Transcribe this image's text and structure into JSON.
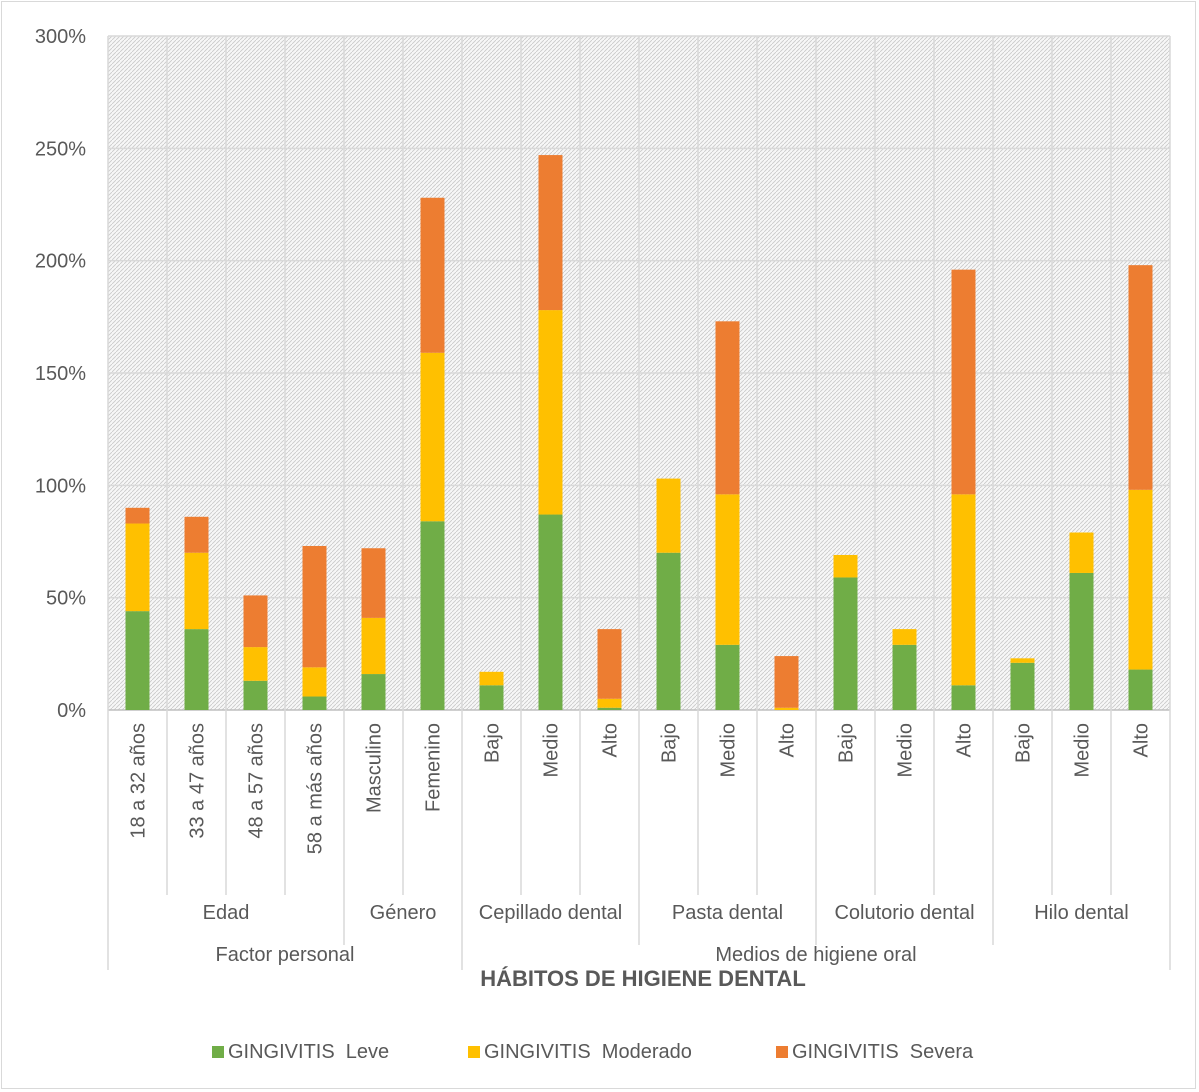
{
  "chart_data": {
    "type": "bar",
    "stacked": true,
    "xlabel": "HÁBITOS DE HIGIENE DENTAL",
    "ylabel": "",
    "ylim": [
      0,
      3
    ],
    "yticks": [
      0,
      0.5,
      1,
      1.5,
      2,
      2.5,
      3
    ],
    "ytick_labels": [
      "0%",
      "50%",
      "100%",
      "150%",
      "200%",
      "250%",
      "300%"
    ],
    "grid": true,
    "legend_position": "bottom",
    "categories": [
      "18 a 32 años",
      "33 a 47 años",
      "48 a 57 años",
      "58 a más años",
      "Masculino",
      "Femenino",
      "Bajo",
      "Medio",
      "Alto",
      "Bajo",
      "Medio",
      "Alto",
      "Bajo",
      "Medio",
      "Alto",
      "Bajo",
      "Medio",
      "Alto"
    ],
    "groups": [
      {
        "label": "Edad",
        "start": 0,
        "end": 3
      },
      {
        "label": "Género",
        "start": 4,
        "end": 5
      },
      {
        "label": "Cepillado dental",
        "start": 6,
        "end": 8
      },
      {
        "label": "Pasta dental",
        "start": 9,
        "end": 11
      },
      {
        "label": "Colutorio dental",
        "start": 12,
        "end": 14
      },
      {
        "label": "Hilo dental",
        "start": 15,
        "end": 17
      }
    ],
    "supergroups": [
      {
        "label": "Factor personal",
        "start": 0,
        "end": 5
      },
      {
        "label": "Medios de higiene oral",
        "start": 6,
        "end": 17
      }
    ],
    "series": [
      {
        "name": "GINGIVITIS  Leve",
        "color": "#70ad47",
        "values": [
          0.44,
          0.36,
          0.13,
          0.06,
          0.16,
          0.84,
          0.11,
          0.87,
          0.01,
          0.7,
          0.29,
          0.0,
          0.59,
          0.29,
          0.11,
          0.21,
          0.61,
          0.18
        ]
      },
      {
        "name": "GINGIVITIS  Moderado",
        "color": "#ffc000",
        "values": [
          0.39,
          0.34,
          0.15,
          0.13,
          0.25,
          0.75,
          0.06,
          0.91,
          0.04,
          0.33,
          0.67,
          0.01,
          0.1,
          0.07,
          0.85,
          0.02,
          0.18,
          0.8
        ]
      },
      {
        "name": "GINGIVITIS  Severa",
        "color": "#ed7d31",
        "values": [
          0.07,
          0.16,
          0.23,
          0.54,
          0.31,
          0.69,
          0.0,
          0.69,
          0.31,
          0.0,
          0.77,
          0.23,
          0.0,
          0.0,
          1.0,
          0.0,
          0.0,
          1.0
        ]
      }
    ]
  }
}
